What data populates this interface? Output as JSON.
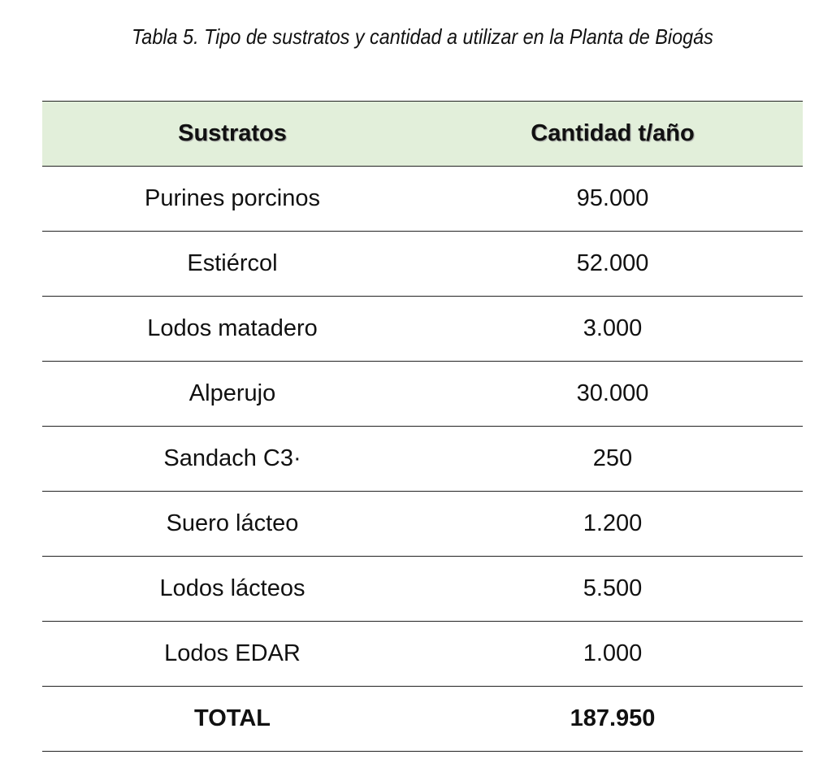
{
  "header": {
    "title": "Tabla 5. Tipo de sustratos y cantidad a utilizar en la Planta de Biogás"
  },
  "table": {
    "columns": [
      "Sustratos",
      "Cantidad t/año"
    ],
    "rows": [
      [
        "Purines porcinos",
        "95.000"
      ],
      [
        "Estiércol",
        "52.000"
      ],
      [
        "Lodos matadero",
        "3.000"
      ],
      [
        "Alperujo",
        "30.000"
      ],
      [
        "Sandach C3·",
        "250"
      ],
      [
        "Suero lácteo",
        "1.200"
      ],
      [
        "Lodos lácteos",
        "5.500"
      ],
      [
        "Lodos EDAR",
        "1.000"
      ]
    ],
    "total": [
      "TOTAL",
      "187.950"
    ]
  }
}
